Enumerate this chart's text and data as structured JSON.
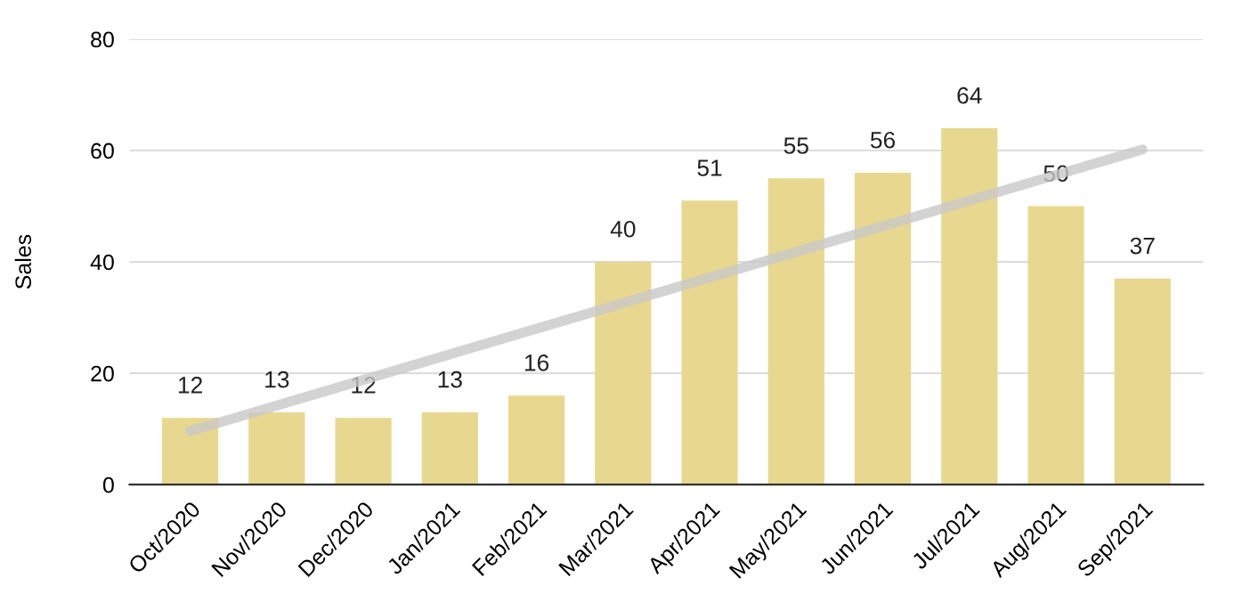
{
  "chart_data": {
    "type": "bar",
    "ylabel": "Sales",
    "categories": [
      "Oct/2020",
      "Nov/2020",
      "Dec/2020",
      "Jan/2021",
      "Feb/2021",
      "Mar/2021",
      "Apr/2021",
      "May/2021",
      "Jun/2021",
      "Jul/2021",
      "Aug/2021",
      "Sep/2021"
    ],
    "series": [
      {
        "color": "#e8d88f",
        "values": [
          12,
          13,
          12,
          13,
          16,
          40,
          51,
          55,
          56,
          64,
          50,
          37
        ],
        "value_labels": [
          "12",
          "13",
          "12",
          "13",
          "16",
          "40",
          "51",
          "55",
          "56",
          "64",
          "50",
          "37"
        ]
      },
      {
        "type": "line",
        "color": "#c8c8c8",
        "values": [
          9.6,
          14.2,
          18.8,
          23.4,
          28.0,
          32.6,
          37.2,
          41.8,
          46.4,
          51.0,
          55.6,
          60.2
        ]
      }
    ],
    "ylim": [
      0,
      80
    ],
    "yticks": [
      0,
      20,
      40,
      60,
      80
    ],
    "grid": "y",
    "legend": false
  }
}
